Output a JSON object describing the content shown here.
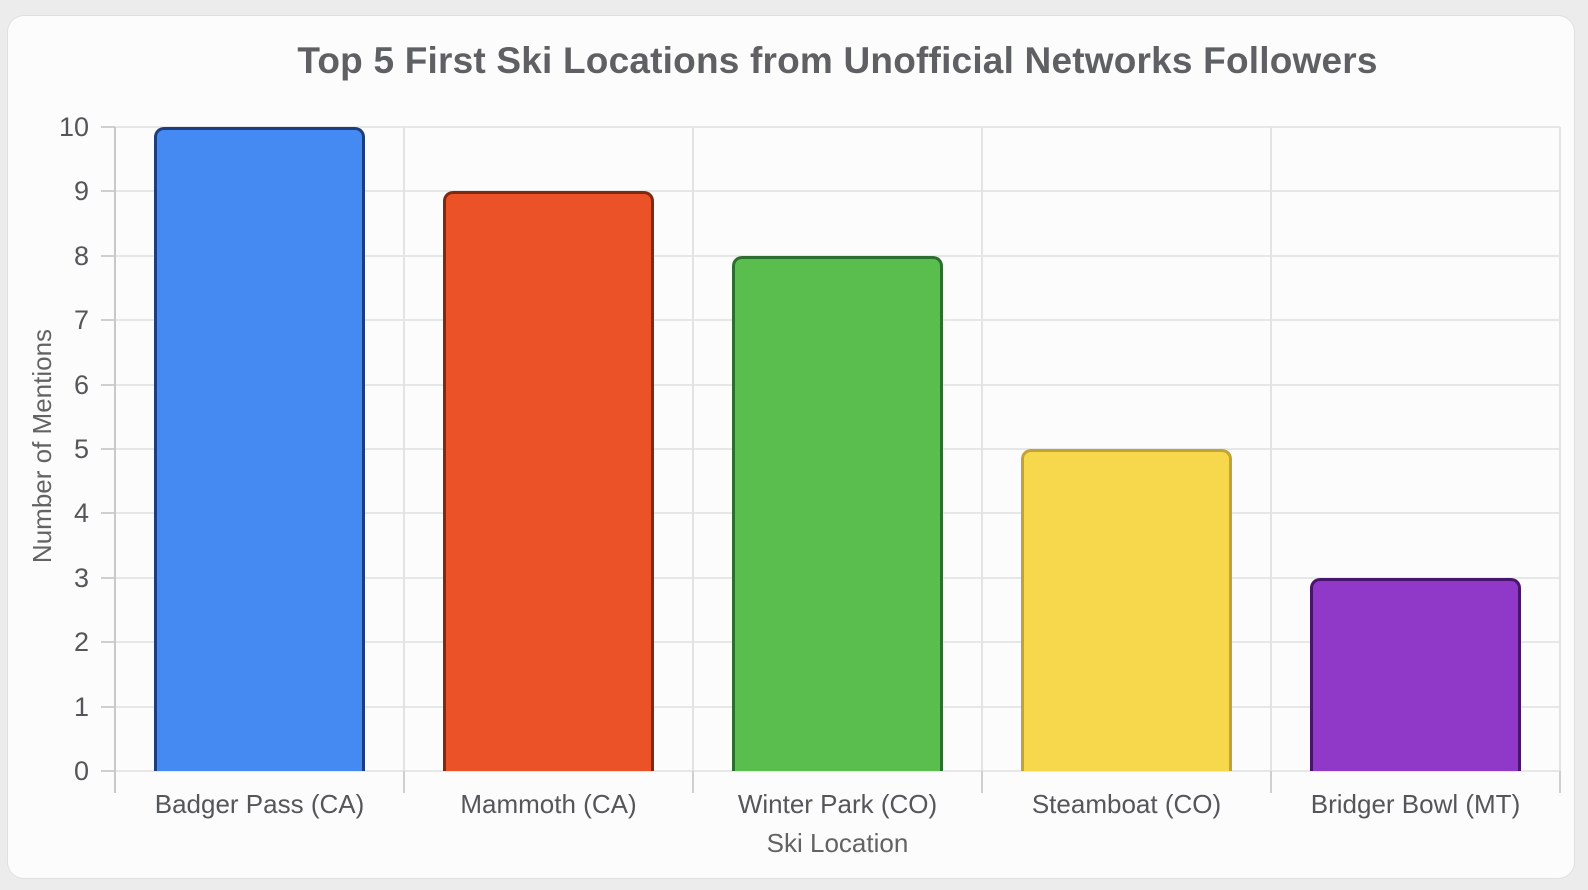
{
  "chart_data": {
    "type": "bar",
    "title": "Top 5 First Ski Locations from Unofficial Networks Followers",
    "xlabel": "Ski Location",
    "ylabel": "Number of Mentions",
    "categories": [
      "Badger Pass (CA)",
      "Mammoth (CA)",
      "Winter Park (CO)",
      "Steamboat (CO)",
      "Bridger Bowl (MT)"
    ],
    "values": [
      10,
      9,
      8,
      5,
      3
    ],
    "bar_colors": [
      "#4589F2",
      "#EC5228",
      "#5ABE4E",
      "#F7D84C",
      "#9038C8"
    ],
    "bar_border_colors": [
      "#1C3E7E",
      "#7E2A10",
      "#2B6E2E",
      "#C2A335",
      "#47156B"
    ],
    "ylim": [
      0,
      10
    ],
    "ytick_step": 1,
    "grid": true,
    "legend": false,
    "colors": {
      "card_background": "#fcfcfc",
      "page_background": "#ececec",
      "title_text": "#5f6063",
      "axis_text": "#55565a",
      "gridline": "#e7e7e7"
    }
  }
}
